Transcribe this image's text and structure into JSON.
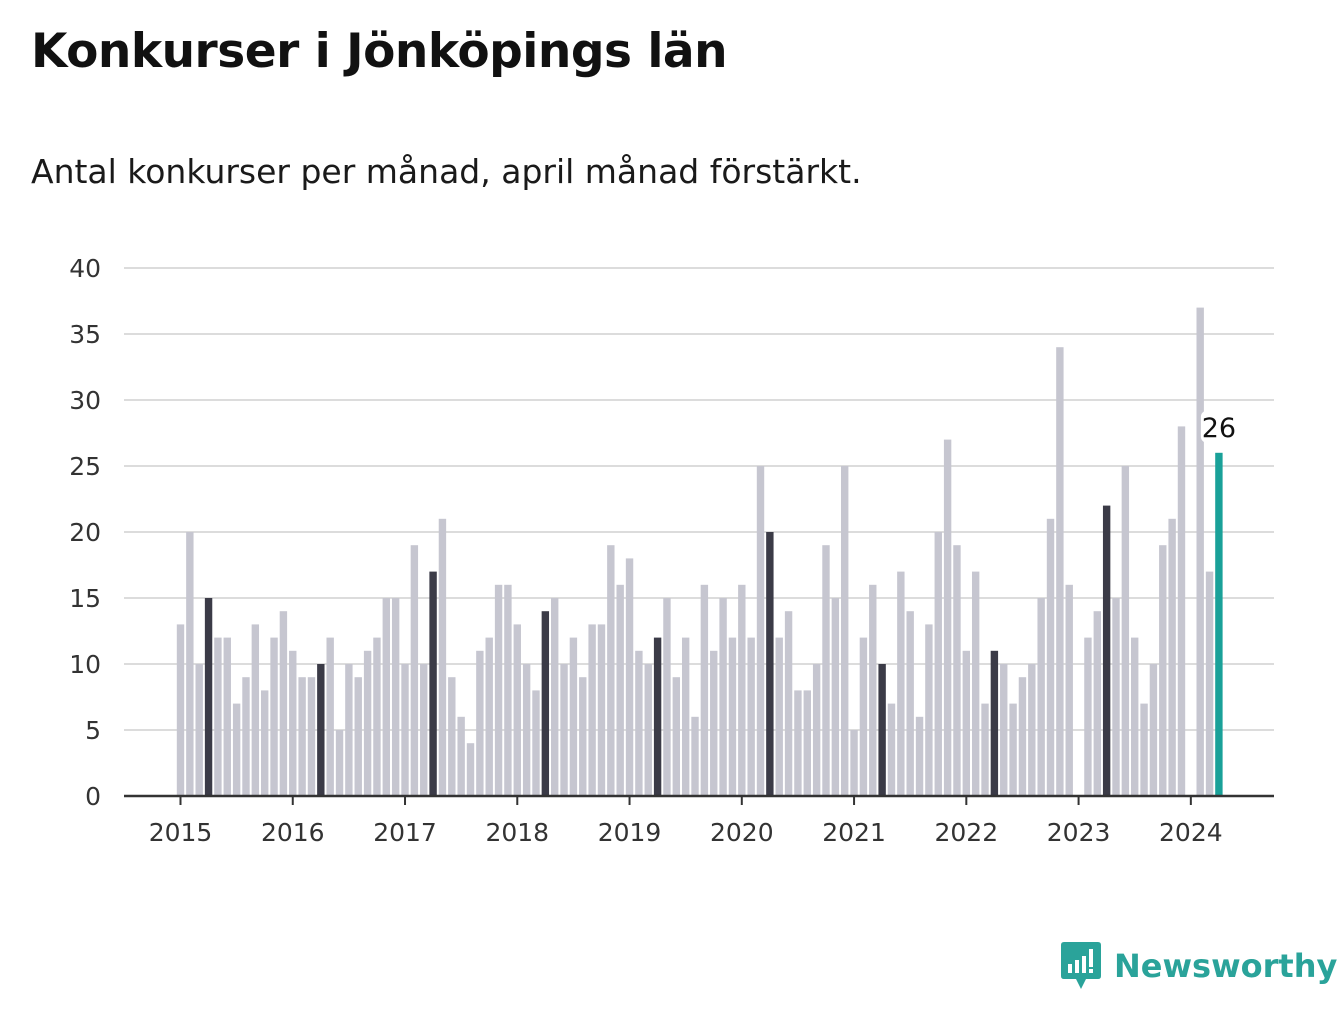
{
  "title": "Konkurser i Jönköpings län",
  "subtitle": "Antal konkurser per månad, april månad förstärkt.",
  "brand": "Newsworthy",
  "colors": {
    "base": "#c6c6d0",
    "highlight": "#3b3b47",
    "latest": "#1aa199",
    "grid": "#dcdcdc",
    "axis": "#333333"
  },
  "chart_data": {
    "type": "bar",
    "ylim": [
      0,
      40
    ],
    "yticks": [
      0,
      5,
      10,
      15,
      20,
      25,
      30,
      35,
      40
    ],
    "years": [
      "2015",
      "2016",
      "2017",
      "2018",
      "2019",
      "2020",
      "2021",
      "2022",
      "2023",
      "2024"
    ],
    "start_month": "2015-01",
    "highlight_month": 4,
    "values": [
      13,
      20,
      10,
      15,
      12,
      12,
      7,
      9,
      13,
      8,
      12,
      14,
      11,
      9,
      9,
      10,
      12,
      5,
      10,
      9,
      11,
      12,
      15,
      15,
      10,
      19,
      10,
      17,
      21,
      9,
      6,
      4,
      11,
      12,
      16,
      16,
      13,
      10,
      8,
      14,
      15,
      10,
      12,
      9,
      13,
      13,
      19,
      16,
      18,
      11,
      10,
      12,
      15,
      9,
      12,
      6,
      16,
      11,
      15,
      12,
      16,
      12,
      25,
      20,
      12,
      14,
      8,
      8,
      10,
      19,
      15,
      25,
      5,
      12,
      16,
      10,
      7,
      17,
      14,
      6,
      13,
      20,
      27,
      19,
      11,
      17,
      7,
      11,
      10,
      7,
      9,
      10,
      15,
      21,
      34,
      16,
      0,
      12,
      14,
      22,
      15,
      25,
      12,
      7,
      10,
      19,
      21,
      28,
      0,
      37,
      17,
      26
    ],
    "annotation": {
      "index": 111,
      "label": "26"
    }
  }
}
